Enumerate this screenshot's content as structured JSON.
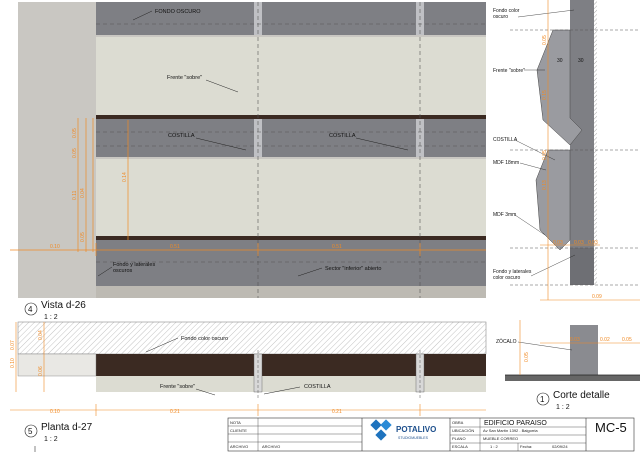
{
  "elevation": {
    "labels": {
      "fondo_oscuro": "FONDO OSCURO",
      "frente_sobre": "Frente \"sobre\"",
      "costilla_left": "COSTILLA",
      "costilla_right": "COSTILLA",
      "fondo_laterales_1": "Fondo y laterales",
      "fondo_laterales_2": "oscuros",
      "sector_inferior": "Sector \"inferior\" abierto"
    },
    "dims": {
      "top_1": "0.05",
      "top_2": "0.05",
      "mid_1": "0.11",
      "mid_2": "0.04",
      "mid_3": "0.14",
      "bot_1": "0.05",
      "bottom_left": "0.10",
      "bottom_span_1": "0.51",
      "bottom_span_2": "0.51"
    }
  },
  "section": {
    "title": "Corte detalle",
    "scale": "1 : 2",
    "number": "1",
    "labels": {
      "fondo_color_1": "Fondo color",
      "fondo_color_2": "oscuro",
      "frente_sobre": "Frente \"sobre\"",
      "costilla": "COSTILLA",
      "mdf18": "MDF 18mm",
      "mdf3": "MDF 3mm",
      "fondo_lat_1": "Fondo y laterales",
      "fondo_lat_2": "color oscuro",
      "zocalo": "ZÓCALO"
    },
    "dims": {
      "d30a": "30",
      "d30b": "30",
      "v1": "0.05",
      "v2": "0.15",
      "v3": "0.05",
      "v4": "0.13",
      "v5": "0.05",
      "h1": "0.03",
      "h2": "0.03",
      "h3": "0.03",
      "h4": "0.09",
      "h5": "0.03",
      "h6": "0.02",
      "h7": "0.05"
    }
  },
  "vista": {
    "title": "Vista d-26",
    "scale": "1 : 2",
    "number": "4"
  },
  "planta": {
    "title": "Planta d-27",
    "scale": "1 : 2",
    "number": "5",
    "labels": {
      "fondo_color": "Fondo color oscuro",
      "frente_sobre": "Frente \"sobre\"",
      "costilla": "COSTILLA"
    },
    "dims": {
      "v1": "0.10",
      "v2": "0.07",
      "v3": "0.04",
      "v4": "0.06",
      "h1": "0.10",
      "h2": "0.21",
      "h3": "0.21"
    }
  },
  "title_block": {
    "nota_label": "NOTA",
    "cliente_label": "CLIENTE",
    "archivo_label": "ARCHIVO",
    "archivo_value": "ARCHIVO",
    "logo_text": "POTALIVO",
    "logo_sub": "STUDIOMUEBLES",
    "obra_label": "OBRA",
    "obra_value": "EDIFICIO PARAISO",
    "ubicacion_label": "UBICACIÓN",
    "ubicacion_value": "Av San Martín 1392 . Baigorria",
    "plano_label": "PLANO",
    "plano_value": "MUEBLE CORREO",
    "escala_label": "ESCALA",
    "escala_value": "1 : 2",
    "fecha_label": "Fecha:",
    "fecha_value": "02/09/24",
    "sheet": "MC-5"
  },
  "colors": {
    "dim_orange": "#f08a24",
    "dark_panel": "#7e7f84",
    "light_panel": "#dcdcd2",
    "dark_brown": "#3b2a22",
    "frame_gray": "#c7c5c0"
  }
}
